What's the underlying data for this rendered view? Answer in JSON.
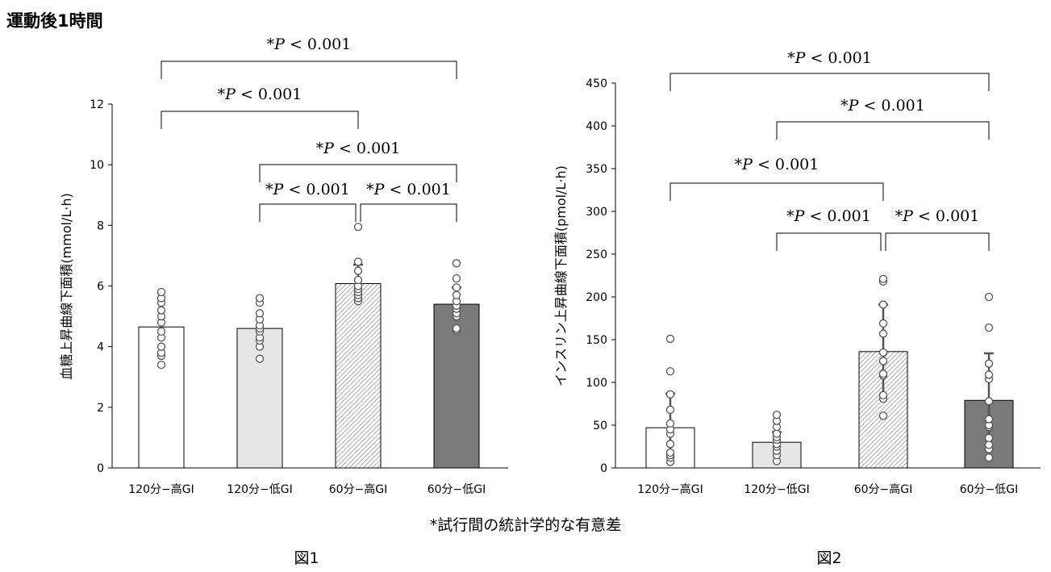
{
  "page": {
    "title": "運動後1時間",
    "footnote": "*試行間の統計学的な有意差"
  },
  "chart_data": [
    {
      "type": "bar",
      "figure_label": "図1",
      "ylabel": "血糖上昇曲線下面積(mmol/L·h)",
      "ylim": [
        0,
        12
      ],
      "yticks": [
        0,
        2,
        4,
        6,
        8,
        10,
        12
      ],
      "categories": [
        "120分−高GI",
        "120分−低GI",
        "60分−高GI",
        "60分−低GI"
      ],
      "values": [
        4.65,
        4.6,
        6.08,
        5.4
      ],
      "error": [
        0.0,
        0.0,
        0.62,
        0.55
      ],
      "bar_fills": [
        "white",
        "#e6e6e6",
        "hatch",
        "#7a7a7a"
      ],
      "points": [
        [
          3.4,
          3.7,
          3.8,
          4.0,
          4.3,
          4.5,
          4.8,
          5.0,
          5.2,
          5.45,
          5.6,
          5.8
        ],
        [
          3.6,
          4.0,
          4.2,
          4.3,
          4.5,
          4.6,
          4.7,
          4.9,
          5.1,
          5.45,
          5.6
        ],
        [
          5.5,
          5.6,
          5.7,
          5.8,
          5.9,
          6.0,
          6.2,
          6.5,
          6.8,
          7.95
        ],
        [
          4.55,
          4.6,
          5.0,
          5.1,
          5.25,
          5.35,
          5.5,
          5.7,
          5.95,
          6.25,
          6.75
        ]
      ],
      "significance": [
        {
          "from": 0,
          "to": 3,
          "label_star": "*",
          "label_p": "P",
          "label_rest": " < 0.001"
        },
        {
          "from": 0,
          "to": 2,
          "label_star": "*",
          "label_p": "P",
          "label_rest": " < 0.001"
        },
        {
          "from": 1,
          "to": 3,
          "label_star": "*",
          "label_p": "P",
          "label_rest": " < 0.001"
        },
        {
          "from": 1,
          "to": 2,
          "label_star": "*",
          "label_p": "P",
          "label_rest": " < 0.001"
        },
        {
          "from": 2,
          "to": 3,
          "label_star": "*",
          "label_p": "P",
          "label_rest": " < 0.001"
        }
      ]
    },
    {
      "type": "bar",
      "figure_label": "図2",
      "ylabel": "インスリン上昇曲線下面積(pmol/L·h)",
      "ylim": [
        0,
        450
      ],
      "yticks": [
        0,
        50,
        100,
        150,
        200,
        250,
        300,
        350,
        400,
        450
      ],
      "categories": [
        "120分−高GI",
        "120分−低GI",
        "60分−高GI",
        "60分−低GI"
      ],
      "values": [
        47,
        30,
        136,
        79
      ],
      "error": [
        40,
        12,
        55,
        55
      ],
      "bar_fills": [
        "white",
        "#e6e6e6",
        "hatch",
        "#7a7a7a"
      ],
      "points": [
        [
          7,
          12,
          15,
          18,
          28,
          40,
          45,
          52,
          68,
          86,
          113,
          151
        ],
        [
          8,
          15,
          20,
          25,
          28,
          33,
          36,
          40,
          48,
          55,
          62
        ],
        [
          61,
          81,
          85,
          108,
          110,
          125,
          135,
          157,
          169,
          191,
          218,
          221
        ],
        [
          12,
          22,
          27,
          35,
          48,
          50,
          57,
          78,
          104,
          109,
          122,
          164,
          200
        ]
      ],
      "significance": [
        {
          "from": 0,
          "to": 3,
          "label_star": "*",
          "label_p": "P",
          "label_rest": " < 0.001"
        },
        {
          "from": 1,
          "to": 3,
          "label_star": "*",
          "label_p": "P",
          "label_rest": " < 0.001"
        },
        {
          "from": 0,
          "to": 2,
          "label_star": "*",
          "label_p": "P",
          "label_rest": " < 0.001"
        },
        {
          "from": 1,
          "to": 2,
          "label_star": "*",
          "label_p": "P",
          "label_rest": " < 0.001"
        },
        {
          "from": 2,
          "to": 3,
          "label_star": "*",
          "label_p": "P",
          "label_rest": " < 0.001"
        }
      ]
    }
  ]
}
